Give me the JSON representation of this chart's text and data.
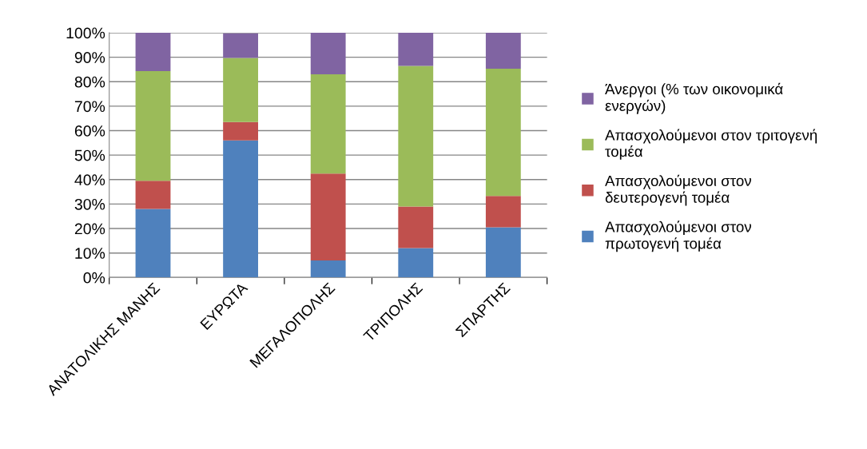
{
  "chart_data": {
    "type": "bar",
    "stacked": true,
    "categories": [
      "ΑΝΑΤΟΛΙΚΗΣ ΜΑΝΗΣ",
      "ΕΥΡΩΤΑ",
      "ΜΕΓΑΛΟΠΟΛΗΣ",
      "ΤΡΙΠΟΛΗΣ",
      "ΣΠΑΡΤΗΣ"
    ],
    "series": [
      {
        "name": "Απασχολούμενοι στον\nπρωτογενή τομέα",
        "color": "#4f81bd",
        "values": [
          28,
          56,
          7,
          12,
          20.5
        ]
      },
      {
        "name": "Απασχολούμενοι στον\nδευτερογενή τομέα",
        "color": "#c0504d",
        "values": [
          11.5,
          7.5,
          35.5,
          17,
          12.8
        ]
      },
      {
        "name": "Απασχολούμενοι στον τριτογενή\nτομέα",
        "color": "#9bbb59",
        "values": [
          44.8,
          26.2,
          40.5,
          57.5,
          52
        ]
      },
      {
        "name": "Άνεργοι (% των οικονομικά\nενεργών)",
        "color": "#8064a2",
        "values": [
          15.7,
          10.1,
          17,
          13.5,
          14.7
        ]
      }
    ],
    "ylim": [
      0,
      100
    ],
    "yticks": [
      {
        "value": 0,
        "label": "0%"
      },
      {
        "value": 10,
        "label": "10%"
      },
      {
        "value": 20,
        "label": "20%"
      },
      {
        "value": 30,
        "label": "30%"
      },
      {
        "value": 40,
        "label": "40%"
      },
      {
        "value": 50,
        "label": "50%"
      },
      {
        "value": 60,
        "label": "60%"
      },
      {
        "value": 70,
        "label": "70%"
      },
      {
        "value": 80,
        "label": "80%"
      },
      {
        "value": 90,
        "label": "90%"
      },
      {
        "value": 100,
        "label": "100%"
      }
    ],
    "grid": "y",
    "legend": "right"
  }
}
